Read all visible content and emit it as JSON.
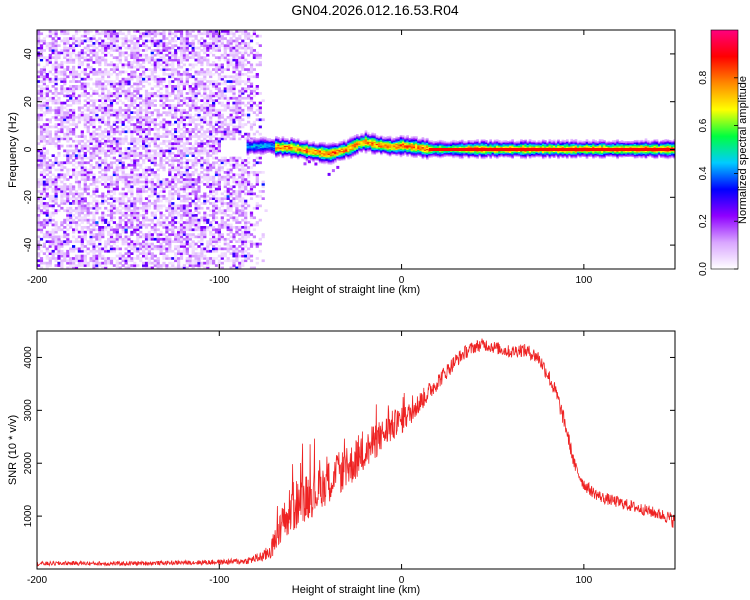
{
  "title": "GN04.2026.012.16.53.R04",
  "chart_data": [
    {
      "type": "heatmap",
      "title": "",
      "xlabel": "Height of straight line (km)",
      "ylabel": "Frequency (Hz)",
      "xlim": [
        -200,
        150
      ],
      "ylim": [
        -50,
        50
      ],
      "xticks": [
        -200,
        -100,
        0,
        100
      ],
      "yticks": [
        -40,
        -20,
        0,
        20,
        40
      ],
      "colorbar": {
        "label": "Normalized spectral amplitude",
        "range": [
          0,
          1
        ],
        "ticks": [
          "0.0",
          "0.2",
          "0.4",
          "0.6",
          "0.8"
        ],
        "colors": [
          "#ffffff",
          "#d9a6ff",
          "#8f00ff",
          "#0000ff",
          "#00ccff",
          "#00ff40",
          "#ffff00",
          "#ff8800",
          "#ff0000",
          "#ff007f"
        ]
      },
      "regions": [
        {
          "name": "noise",
          "x_range": [
            -200,
            -75
          ],
          "freq_range": [
            -50,
            50
          ],
          "amplitude_range": [
            0.0,
            0.15
          ]
        },
        {
          "name": "signal-band",
          "x_range": [
            -85,
            150
          ],
          "center_freq_hz": 0,
          "half_width_hz": 3,
          "peak_amplitude": 0.9
        }
      ],
      "ridge": {
        "x": [
          -85,
          -75,
          -70,
          -60,
          -50,
          -40,
          -30,
          -25,
          -20,
          -15,
          -10,
          -5,
          0,
          5,
          10,
          15,
          30,
          60,
          90,
          120,
          150
        ],
        "freq": [
          1,
          1.5,
          1,
          0.5,
          -1,
          -2,
          0,
          2,
          3,
          2,
          1.5,
          1,
          1.5,
          1,
          0.5,
          0,
          0,
          0,
          0,
          0,
          0
        ]
      }
    },
    {
      "type": "line",
      "title": "",
      "xlabel": "Height of straight line (km)",
      "ylabel": "SNR (10 * v/v)",
      "xlim": [
        -200,
        150
      ],
      "ylim": [
        0,
        4500
      ],
      "xticks": [
        -200,
        -100,
        0,
        100
      ],
      "yticks": [
        1000,
        2000,
        3000,
        4000
      ],
      "series": [
        {
          "name": "SNR",
          "color": "#ee2222",
          "x": [
            -200,
            -180,
            -160,
            -140,
            -120,
            -100,
            -85,
            -75,
            -70,
            -65,
            -60,
            -55,
            -50,
            -45,
            -40,
            -35,
            -30,
            -25,
            -20,
            -15,
            -10,
            -5,
            0,
            5,
            10,
            15,
            20,
            25,
            30,
            35,
            40,
            45,
            50,
            55,
            60,
            65,
            70,
            75,
            80,
            85,
            90,
            95,
            100,
            105,
            110,
            115,
            120,
            125,
            130,
            135,
            140,
            145,
            150
          ],
          "y": [
            100,
            110,
            100,
            110,
            120,
            130,
            150,
            250,
            450,
            800,
            1150,
            1300,
            1400,
            1500,
            1650,
            1800,
            1900,
            2050,
            2200,
            2400,
            2550,
            2700,
            2800,
            2950,
            3150,
            3350,
            3550,
            3750,
            3950,
            4100,
            4200,
            4250,
            4200,
            4150,
            4100,
            4150,
            4100,
            4000,
            3700,
            3300,
            2700,
            1950,
            1600,
            1450,
            1350,
            1300,
            1250,
            1200,
            1150,
            1100,
            1050,
            1000,
            900
          ],
          "noise": [
            40,
            40,
            40,
            40,
            40,
            50,
            60,
            120,
            250,
            450,
            500,
            450,
            450,
            400,
            400,
            400,
            400,
            380,
            350,
            350,
            300,
            300,
            250,
            220,
            200,
            180,
            160,
            150,
            140,
            130,
            120,
            120,
            120,
            120,
            120,
            130,
            130,
            140,
            150,
            160,
            150,
            130,
            120,
            110,
            110,
            110,
            110,
            110,
            110,
            110,
            110,
            120,
            150
          ]
        }
      ]
    }
  ]
}
